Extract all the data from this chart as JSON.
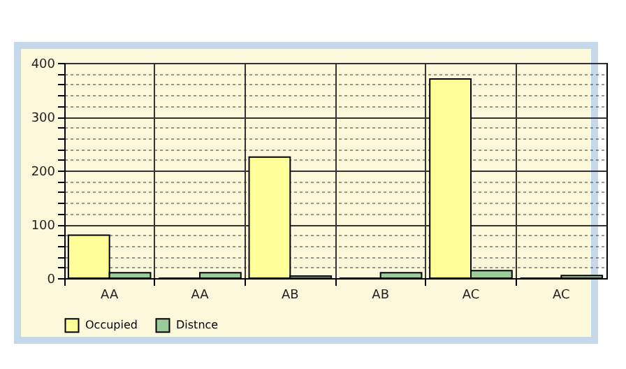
{
  "chart_data": {
    "type": "bar",
    "categories": [
      "AA",
      "AA",
      "AB",
      "AB",
      "AC",
      "AC"
    ],
    "series": [
      {
        "name": "Occupied",
        "color": "#ffff99",
        "values": [
          80,
          0,
          225,
          0,
          370,
          0
        ]
      },
      {
        "name": "Distnce",
        "color": "#99cc99",
        "values": [
          10,
          10,
          4,
          10,
          14,
          5
        ]
      }
    ],
    "ylim": [
      0,
      400
    ],
    "yticks": [
      0,
      {
        "value": 20,
        "label": null
      },
      {
        "value": 40,
        "label": null
      },
      {
        "value": 60,
        "label": null
      },
      {
        "value": 80,
        "label": null
      },
      100,
      {
        "value": 120,
        "label": null
      },
      {
        "value": 140,
        "label": null
      },
      {
        "value": 160,
        "label": null
      },
      {
        "value": 180,
        "label": null
      },
      200,
      {
        "value": 220,
        "label": null
      },
      {
        "value": 240,
        "label": null
      },
      {
        "value": 260,
        "label": null
      },
      {
        "value": 280,
        "label": null
      },
      300,
      {
        "value": 320,
        "label": null
      },
      {
        "value": 340,
        "label": null
      },
      {
        "value": 360,
        "label": null
      },
      {
        "value": 380,
        "label": null
      },
      400
    ],
    "grid": true,
    "legend": "bottom"
  }
}
